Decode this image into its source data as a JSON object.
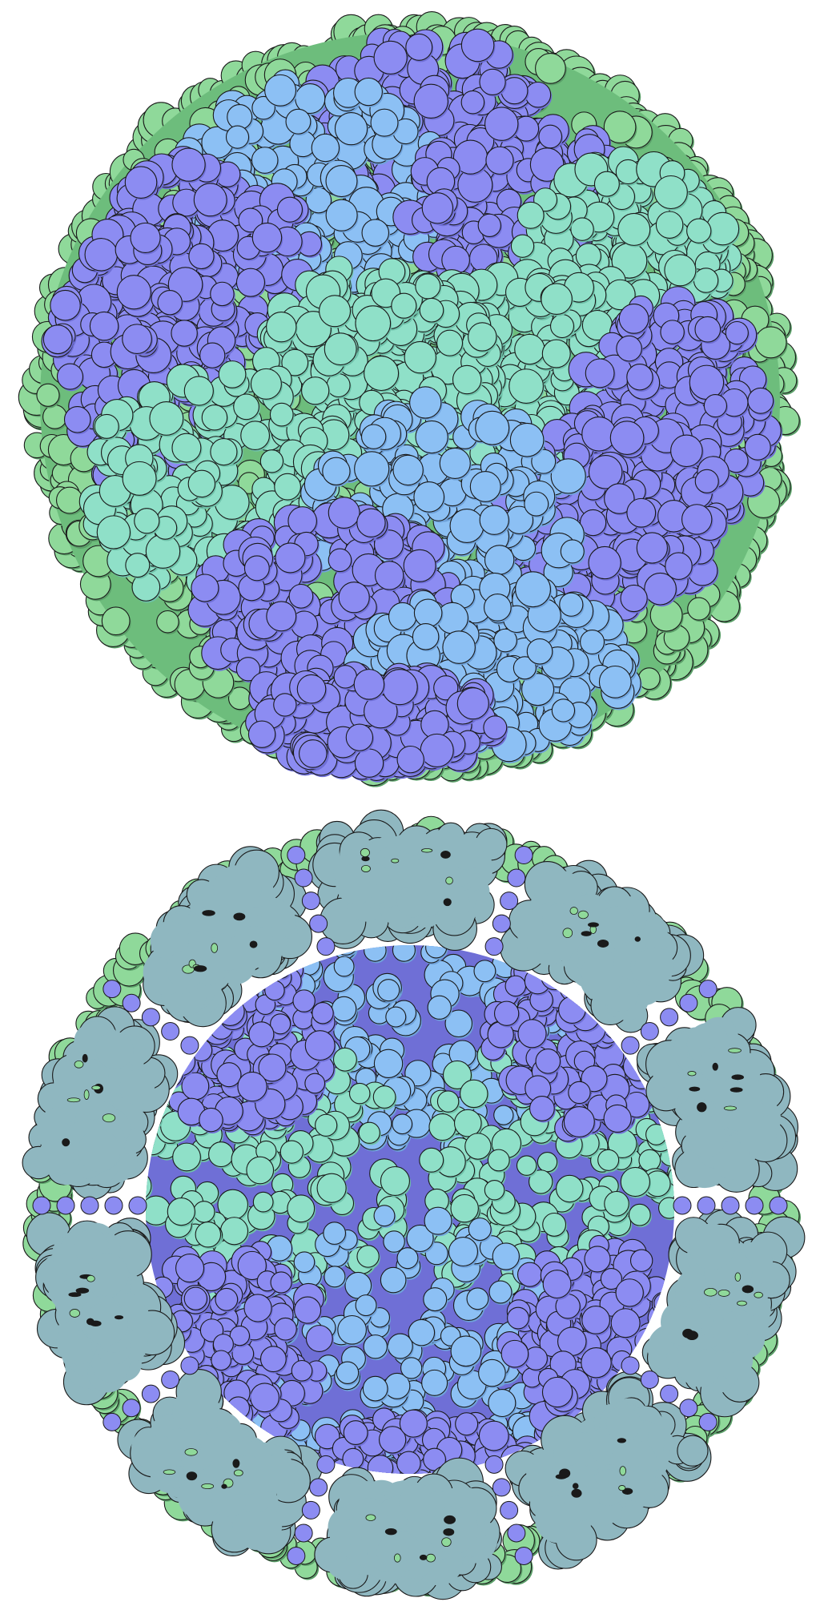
{
  "image": {
    "kind": "molecular-illustration",
    "panels": [
      {
        "id": "capsid-exterior",
        "view": "exterior"
      },
      {
        "id": "capsid-cutaway",
        "view": "cutaway"
      }
    ]
  },
  "colors": {
    "background": "#ffffff",
    "outline": "#1a1a1a",
    "green": "#8fd99a",
    "green_dark": "#6dbd7c",
    "green_shadow": "#5a9e68",
    "violet": "#8c8cf2",
    "violet_dark": "#6f6fd6",
    "sky": "#8cc0f4",
    "sky_dark": "#6fa2da",
    "mint": "#8fe0c8",
    "mint_dark": "#6fc2aa",
    "cut_face": "#8fb7c0",
    "cut_face_dark": "#7aa3ad"
  }
}
